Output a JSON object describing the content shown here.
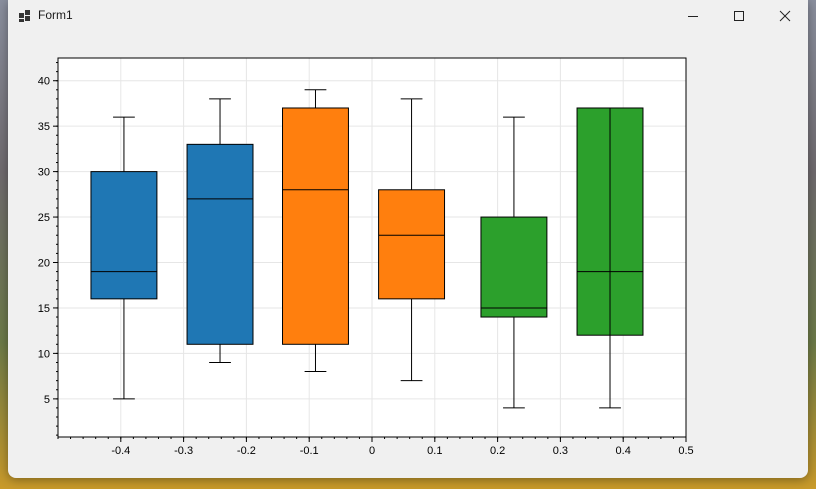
{
  "window": {
    "title": "Form1",
    "controls": [
      "minimize",
      "maximize",
      "close"
    ]
  },
  "chart_data": {
    "type": "box",
    "x_ticks": [
      "-0.4",
      "-0.3",
      "-0.2",
      "-0.1",
      "0",
      "0.1",
      "0.2",
      "0.3",
      "0.4",
      "0.5"
    ],
    "x_tick_values": [
      -0.4,
      -0.3,
      -0.2,
      -0.1,
      0,
      0.1,
      0.2,
      0.3,
      0.4,
      0.5
    ],
    "y_ticks": [
      "5",
      "10",
      "15",
      "20",
      "25",
      "30",
      "35",
      "40"
    ],
    "y_tick_values": [
      5,
      10,
      15,
      20,
      25,
      30,
      35,
      40
    ],
    "xlim": [
      -0.5,
      0.5
    ],
    "ylim": [
      0.8,
      42.5
    ],
    "grid": true,
    "boxes": [
      {
        "x": -0.395,
        "width": 0.105,
        "color": "#1f77b4",
        "min": 5,
        "q1": 16,
        "median": 19,
        "q3": 30,
        "max": 36
      },
      {
        "x": -0.242,
        "width": 0.105,
        "color": "#1f77b4",
        "min": 9,
        "q1": 11,
        "median": 27,
        "q3": 33,
        "max": 38
      },
      {
        "x": -0.09,
        "width": 0.105,
        "color": "#ff7f0e",
        "min": 8,
        "q1": 11,
        "median": 28,
        "q3": 37,
        "max": 39
      },
      {
        "x": 0.063,
        "width": 0.105,
        "color": "#ff7f0e",
        "min": 7,
        "q1": 16,
        "median": 23,
        "q3": 28,
        "max": 38
      },
      {
        "x": 0.226,
        "width": 0.105,
        "color": "#2ca02c",
        "min": 4,
        "q1": 14,
        "median": 15,
        "q3": 25,
        "max": 36
      },
      {
        "x": 0.379,
        "width": 0.105,
        "color": "#2ca02c",
        "min": 4,
        "q1": 12,
        "median": 19,
        "q3": 37,
        "max": 37
      }
    ]
  }
}
